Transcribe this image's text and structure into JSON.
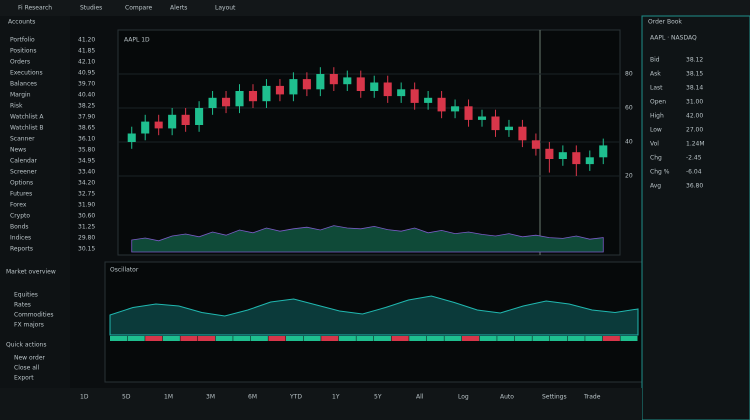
{
  "header": {
    "title": "Fi Research",
    "tools": [
      "Studies",
      "Compare",
      "Alerts",
      "Layout"
    ]
  },
  "sidebar": {
    "title": "Accounts",
    "items": [
      "Portfolio",
      "Positions",
      "Orders",
      "Executions",
      "Balances",
      "Margin",
      "Risk",
      "Watchlist A",
      "Watchlist B",
      "Scanner",
      "News",
      "Calendar",
      "Screener",
      "Options",
      "Futures",
      "Forex",
      "Crypto",
      "Bonds",
      "Indices",
      "Reports"
    ],
    "section": "Market overview",
    "section_items": [
      "Equities",
      "Rates",
      "Commodities",
      "FX majors"
    ],
    "section2": "Quick actions",
    "section2_items": [
      "New order",
      "Close all",
      "Export"
    ]
  },
  "quotes": [
    "41.20",
    "41.85",
    "42.10",
    "40.95",
    "39.70",
    "40.40",
    "38.25",
    "37.90",
    "38.65",
    "36.10",
    "35.80",
    "34.95",
    "33.40",
    "34.20",
    "32.75",
    "31.90",
    "30.60",
    "31.25",
    "29.80",
    "30.15"
  ],
  "chart_data": {
    "type": "candlestick",
    "title": "AAPL 1D",
    "open": [
      40,
      45,
      52,
      48,
      56,
      50,
      60,
      66,
      61,
      70,
      64,
      73,
      68,
      77,
      71,
      80,
      74,
      78,
      70,
      75,
      67,
      71,
      63,
      66,
      58,
      61,
      53,
      55,
      47,
      49,
      41,
      36,
      30,
      34,
      27,
      31
    ],
    "high": [
      49,
      56,
      56,
      60,
      60,
      64,
      70,
      70,
      74,
      74,
      77,
      77,
      81,
      81,
      84,
      84,
      82,
      82,
      79,
      79,
      75,
      75,
      70,
      70,
      65,
      65,
      59,
      59,
      53,
      53,
      45,
      40,
      38,
      38,
      35,
      42
    ],
    "low": [
      36,
      41,
      44,
      44,
      46,
      46,
      56,
      57,
      57,
      60,
      60,
      64,
      64,
      67,
      67,
      70,
      70,
      66,
      66,
      63,
      63,
      59,
      59,
      54,
      54,
      49,
      49,
      43,
      43,
      37,
      32,
      22,
      26,
      20,
      23,
      27
    ],
    "close": [
      45,
      52,
      48,
      56,
      50,
      60,
      66,
      61,
      70,
      64,
      73,
      68,
      77,
      71,
      80,
      74,
      78,
      70,
      75,
      67,
      71,
      63,
      66,
      58,
      61,
      53,
      55,
      47,
      49,
      41,
      36,
      30,
      34,
      27,
      31,
      38
    ],
    "volume": [
      30,
      35,
      28,
      40,
      45,
      38,
      50,
      42,
      55,
      48,
      60,
      52,
      58,
      62,
      55,
      66,
      60,
      58,
      64,
      56,
      52,
      60,
      48,
      54,
      46,
      50,
      44,
      40,
      46,
      38,
      42,
      36,
      34,
      40,
      32,
      36
    ],
    "ylim": [
      0,
      100
    ],
    "yticks": [
      20,
      40,
      60,
      80
    ],
    "up_color": "#1fbf8f",
    "down_color": "#d8364a"
  },
  "indicator": {
    "title": "Oscillator",
    "values": [
      40,
      55,
      62,
      58,
      45,
      38,
      50,
      66,
      72,
      60,
      48,
      42,
      55,
      70,
      78,
      65,
      50,
      44,
      58,
      68,
      62,
      50,
      45,
      52
    ],
    "bars": [
      1,
      1,
      -1,
      1,
      -1,
      -1,
      1,
      1,
      1,
      -1,
      1,
      1,
      -1,
      1,
      1,
      1,
      -1,
      1,
      1,
      1,
      -1,
      1,
      1,
      1,
      1,
      1,
      1,
      1,
      -1,
      1
    ]
  },
  "footer": {
    "tabs": [
      "1D",
      "5D",
      "1M",
      "3M",
      "6M",
      "YTD",
      "1Y",
      "5Y",
      "All",
      "Log",
      "Auto",
      "Settings",
      "Trade"
    ]
  },
  "right_panel": {
    "title": "Order Book",
    "symbol": "AAPL · NASDAQ",
    "rows": [
      {
        "label": "Bid",
        "value": "38.12",
        "tone": "up"
      },
      {
        "label": "Ask",
        "value": "38.15",
        "tone": "down"
      },
      {
        "label": "Last",
        "value": "38.14",
        "tone": "up"
      },
      {
        "label": "Open",
        "value": "31.00",
        "tone": "up"
      },
      {
        "label": "High",
        "value": "42.00",
        "tone": "up"
      },
      {
        "label": "Low",
        "value": "27.00",
        "tone": "down"
      },
      {
        "label": "Vol",
        "value": "1.24M",
        "tone": "up"
      },
      {
        "label": "Chg",
        "value": "-2.45",
        "tone": "down"
      },
      {
        "label": "Chg %",
        "value": "-6.04",
        "tone": "down"
      },
      {
        "label": "Avg",
        "value": "36.80",
        "tone": "up"
      }
    ]
  }
}
